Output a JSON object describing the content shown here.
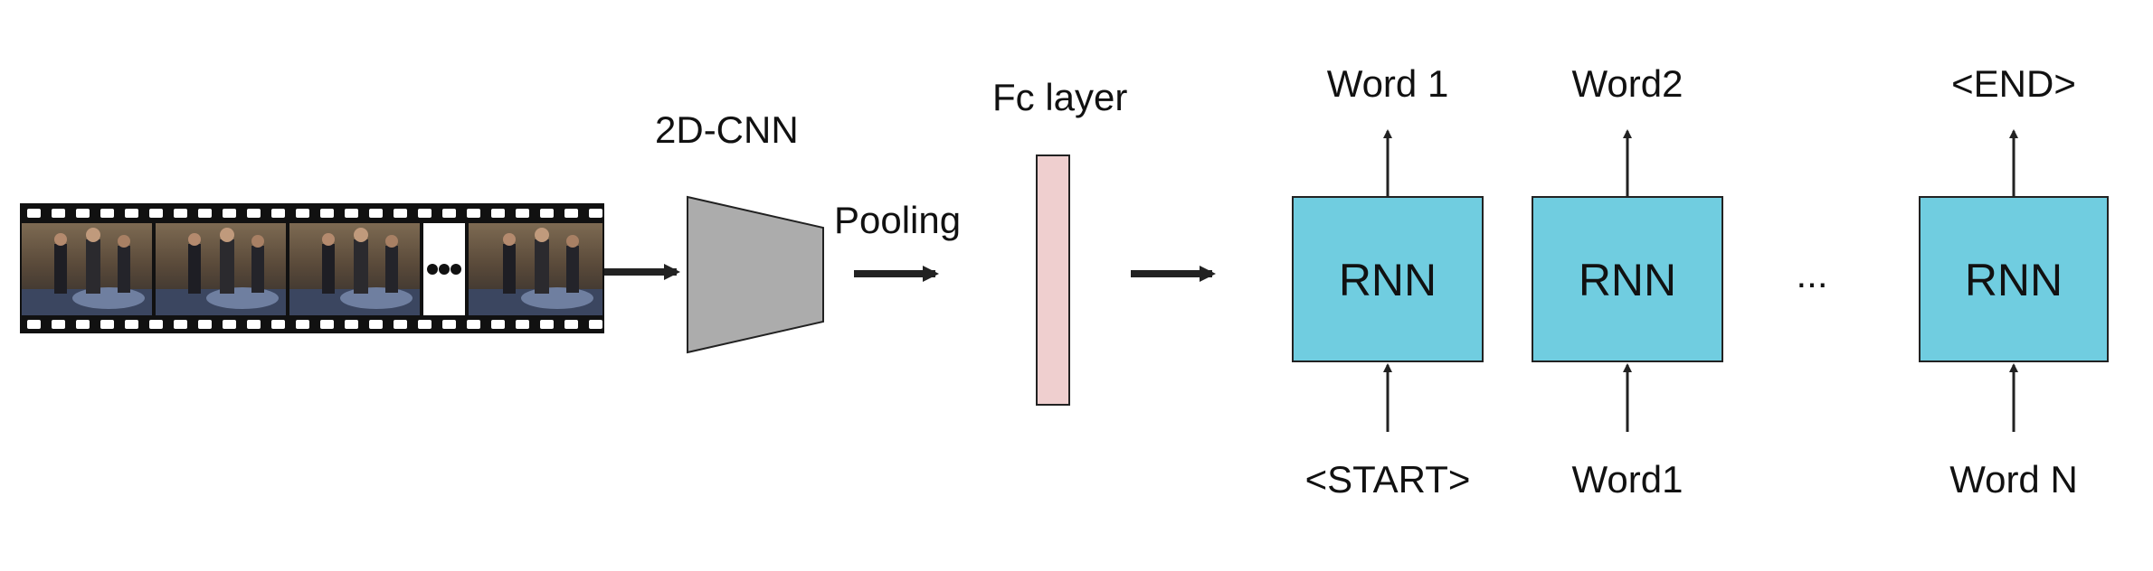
{
  "labels": {
    "cnn": "2D-CNN",
    "pooling": "Pooling",
    "fc": "Fc layer",
    "ellipsis": "..."
  },
  "rnn_cells": [
    {
      "label": "RNN",
      "output": "Word 1",
      "input": "<START>"
    },
    {
      "label": "RNN",
      "output": "Word2",
      "input": "Word1"
    },
    {
      "label": "RNN",
      "output": "<END>",
      "input": "Word N"
    }
  ],
  "colors": {
    "rnn_fill": "#70cde0",
    "fc_fill": "#efcfcf",
    "cnn_fill": "#acacac",
    "arrow": "#222222",
    "film": "#111111"
  },
  "icons": {
    "film_strip": "video-frames-filmstrip-icon"
  }
}
